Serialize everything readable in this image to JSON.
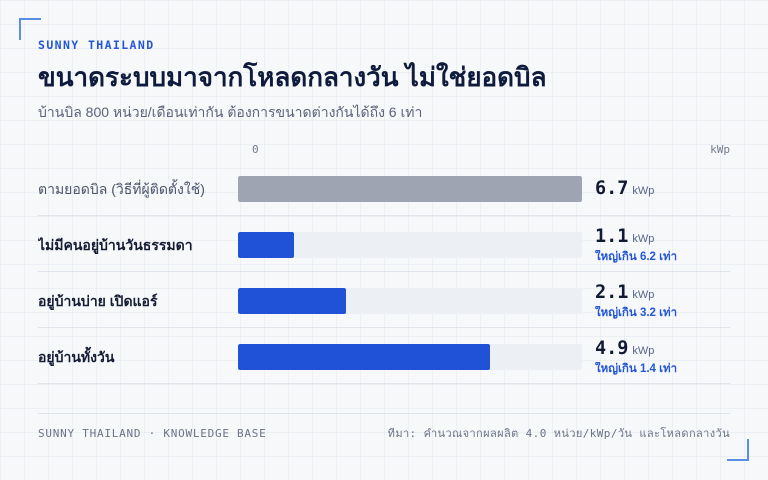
{
  "brand": "SUNNY THAILAND",
  "colors": {
    "accent": "#2456d6",
    "bracket": "#5a8ee6",
    "title": "#0f1b3d",
    "muted": "#5c6479"
  },
  "chart_data": {
    "type": "bar",
    "orientation": "horizontal",
    "title": "ขนาดระบบมาจากโหลดกลางวัน ไม่ใช่ยอดบิล",
    "subtitle": "บ้านบิล 800 หน่วย/เดือนเท่ากัน ต้องการขนาดต่างกันได้ถึง 6 เท่า",
    "categories": [
      "ตามยอดบิล (วิธีที่ผู้ติดตั้งใช้)",
      "ไม่มีคนอยู่บ้านวันธรรมดา",
      "อยู่บ้านบ่าย เปิดแอร์",
      "อยู่บ้านทั้งวัน"
    ],
    "values": [
      6.7,
      1.1,
      2.1,
      4.9
    ],
    "unit": "kWp",
    "annotations": [
      null,
      "ใหญ่เกิน 6.2 เท่า",
      "ใหญ่เกิน 3.2 เท่า",
      "ใหญ่เกิน 1.4 เท่า"
    ],
    "bar_colors": [
      "#9ea4b2",
      "#2052d8",
      "#2052d8",
      "#2052d8"
    ],
    "axis": {
      "tick_labels": [
        "0"
      ],
      "label": "kWp",
      "range": [
        0,
        6.7
      ]
    },
    "grid": false
  },
  "footer": {
    "left": "SUNNY THAILAND · KNOWLEDGE BASE",
    "right": "ที่มา: คำนวณจากผลผลิต 4.0 หน่วย/kWp/วัน และโหลดกลางวัน"
  }
}
